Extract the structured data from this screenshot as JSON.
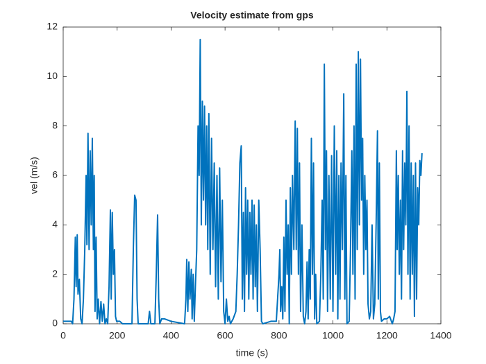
{
  "chart_data": {
    "type": "line",
    "title": "Velocity estimate from gps",
    "xlabel": "time (s)",
    "ylabel": "vel (m/s)",
    "xlim": [
      0,
      1400
    ],
    "xticks": [
      0,
      200,
      400,
      600,
      800,
      1000,
      1200,
      1400
    ],
    "ylim": [
      0,
      12
    ],
    "yticks": [
      0,
      2,
      4,
      6,
      8,
      10,
      12
    ],
    "grid": false,
    "series": [
      {
        "color": "#0072bd",
        "x": [
          0,
          30,
          35,
          40,
          45,
          48,
          52,
          55,
          60,
          65,
          70,
          75,
          80,
          85,
          88,
          92,
          96,
          100,
          104,
          108,
          112,
          115,
          118,
          122,
          126,
          130,
          135,
          140,
          145,
          150,
          155,
          160,
          165,
          170,
          175,
          178,
          182,
          186,
          190,
          194,
          198,
          210,
          220,
          255,
          260,
          265,
          270,
          274,
          278,
          300,
          315,
          320,
          325,
          340,
          345,
          350,
          354,
          358,
          365,
          375,
          400,
          450,
          455,
          458,
          462,
          466,
          470,
          475,
          478,
          482,
          486,
          490,
          495,
          500,
          504,
          508,
          512,
          516,
          520,
          524,
          528,
          532,
          536,
          540,
          545,
          550,
          555,
          560,
          565,
          570,
          575,
          580,
          585,
          590,
          595,
          600,
          605,
          610,
          615,
          620,
          630,
          640,
          645,
          650,
          655,
          660,
          664,
          668,
          672,
          676,
          680,
          684,
          688,
          692,
          696,
          700,
          704,
          708,
          712,
          716,
          720,
          725,
          730,
          735,
          740,
          770,
          790,
          800,
          803,
          806,
          810,
          814,
          818,
          822,
          826,
          830,
          834,
          838,
          842,
          846,
          850,
          855,
          860,
          864,
          868,
          872,
          876,
          880,
          885,
          890,
          895,
          900,
          904,
          908,
          912,
          916,
          920,
          924,
          928,
          932,
          936,
          940,
          950,
          955,
          960,
          964,
          968,
          972,
          976,
          980,
          985,
          990,
          995,
          1000,
          1005,
          1010,
          1014,
          1018,
          1022,
          1026,
          1030,
          1035,
          1040,
          1044,
          1048,
          1052,
          1060,
          1065,
          1070,
          1074,
          1078,
          1082,
          1086,
          1090,
          1094,
          1098,
          1102,
          1106,
          1110,
          1114,
          1118,
          1122,
          1126,
          1130,
          1135,
          1140,
          1145,
          1150,
          1155,
          1160,
          1165,
          1168,
          1172,
          1176,
          1180,
          1190,
          1200,
          1210,
          1220,
          1225,
          1230,
          1235,
          1238,
          1242,
          1246,
          1250,
          1254,
          1258,
          1262,
          1266,
          1270,
          1274,
          1278,
          1282,
          1286,
          1290,
          1294,
          1298,
          1302,
          1306,
          1310,
          1314,
          1318,
          1322,
          1326,
          1330
        ],
        "values": [
          0.1,
          0.1,
          0,
          1,
          3.5,
          1.5,
          3.6,
          1.2,
          1.8,
          0.2,
          0,
          1,
          3,
          6,
          3.2,
          7.7,
          3,
          7,
          4,
          7.5,
          3,
          6,
          0.5,
          3.5,
          0.2,
          1,
          0,
          0.9,
          0.1,
          0.8,
          0,
          0.2,
          0,
          1.5,
          4.6,
          1,
          4.5,
          2,
          3,
          0.3,
          0.1,
          0.1,
          0,
          0,
          3,
          5.2,
          5,
          1,
          0,
          0,
          0,
          0.5,
          0,
          0,
          2,
          4.4,
          1,
          0,
          0.2,
          0.2,
          0.1,
          0,
          1,
          2.6,
          0.5,
          2.5,
          1,
          2.2,
          0.2,
          2,
          0.1,
          1.5,
          3,
          8,
          6,
          11.5,
          4,
          9,
          5,
          8.8,
          4,
          8,
          3,
          8.5,
          2,
          7.5,
          3,
          6.5,
          1.5,
          6,
          1,
          6.3,
          1.7,
          5,
          0.5,
          0,
          1,
          0.1,
          0.3,
          0,
          0.2,
          0.5,
          2,
          4,
          6.5,
          7.2,
          1,
          4.5,
          0.5,
          5.5,
          2,
          5,
          1,
          4.5,
          2,
          5,
          1,
          4.8,
          1.5,
          4,
          0.5,
          5,
          3,
          0.1,
          0,
          0.1,
          0.1,
          2,
          3,
          0.5,
          1.5,
          0.2,
          3.5,
          0.5,
          5,
          2,
          4,
          0,
          5.5,
          2,
          6,
          3,
          8.2,
          3,
          7.9,
          2,
          6.5,
          0.5,
          4,
          0.3,
          0,
          0.5,
          2.5,
          0.2,
          3,
          1,
          7.5,
          2,
          6.5,
          0.2,
          2,
          0,
          0.1,
          2,
          5,
          1,
          10.5,
          3,
          7,
          0.5,
          6,
          1,
          6.8,
          0.5,
          8,
          2,
          7,
          0.2,
          6,
          1,
          6.5,
          3,
          9.3,
          1,
          6,
          0,
          0.1,
          3,
          7,
          2,
          8,
          1,
          10.5,
          3,
          11,
          4,
          10.7,
          5,
          7.5,
          2,
          6,
          3,
          5,
          0.8,
          0.2,
          0.5,
          4,
          0.2,
          0.8,
          4,
          7.8,
          1,
          6.5,
          0.5,
          0.1,
          0.2,
          0.2,
          0.3,
          0,
          0.2,
          0.5,
          7,
          3,
          6,
          2,
          5,
          1,
          7,
          3,
          6.5,
          4,
          9.4,
          2,
          8,
          1,
          6.5,
          2,
          6,
          0.3,
          6.5,
          1,
          5.5,
          4,
          6.6,
          6,
          6.9
        ]
      }
    ]
  }
}
